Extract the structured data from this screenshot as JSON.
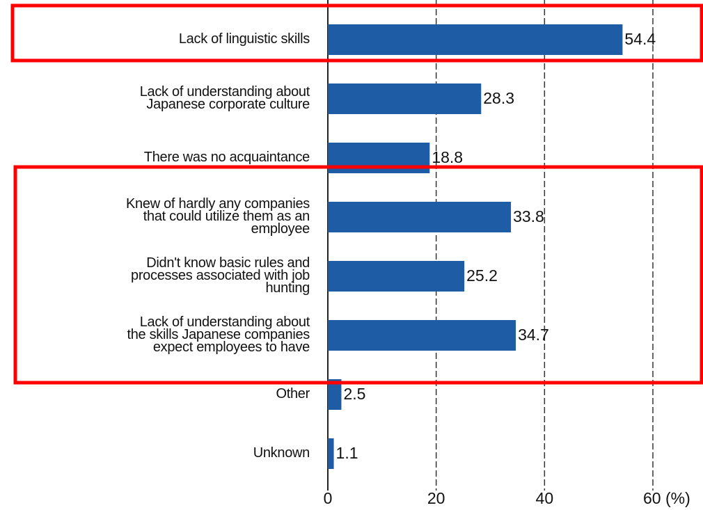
{
  "chart_data": {
    "type": "bar",
    "orientation": "horizontal",
    "categories": [
      "Lack of linguistic skills",
      "Lack of understanding about\nJapanese corporate culture",
      "There was no acquaintance",
      "Knew of hardly any companies\nthat could utilize them as an\nemployee",
      "Didn't know basic rules and\nprocesses associated with job\nhunting",
      "Lack of understanding about\nthe skills Japanese companies\nexpect employees to have",
      "Other",
      "Unknown"
    ],
    "values": [
      54.4,
      28.3,
      18.8,
      33.8,
      25.2,
      34.7,
      2.5,
      1.1
    ],
    "color": "#1f5ca6",
    "xlim": [
      0,
      69
    ],
    "xticks": [
      0,
      20,
      40,
      {
        "value": 60,
        "label": "60 (%)"
      }
    ],
    "grid": true
  }
}
